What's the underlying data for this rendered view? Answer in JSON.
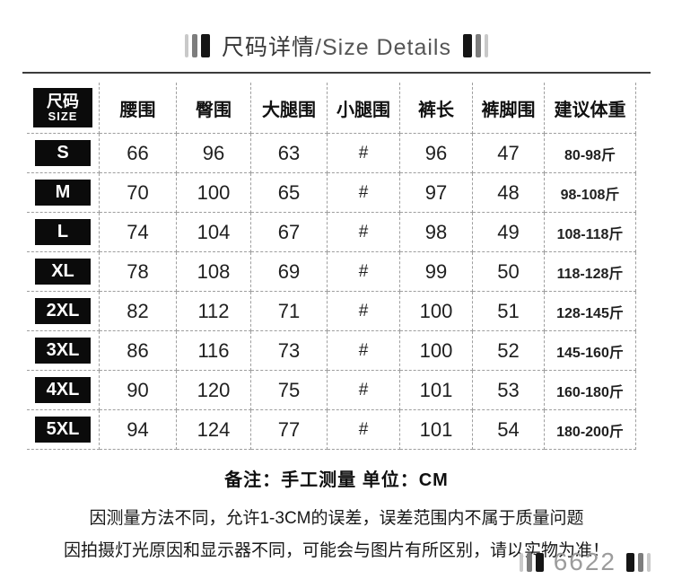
{
  "title": {
    "zh": "尺码详情",
    "en": "/Size Details"
  },
  "table": {
    "header": {
      "size_zh": "尺码",
      "size_en": "SIZE",
      "columns": [
        "腰围",
        "臀围",
        "大腿围",
        "小腿围",
        "裤长",
        "裤脚围",
        "建议体重"
      ]
    },
    "rows": [
      {
        "size": "S",
        "values": [
          "66",
          "96",
          "63",
          "#",
          "96",
          "47",
          "80-98斤"
        ]
      },
      {
        "size": "M",
        "values": [
          "70",
          "100",
          "65",
          "#",
          "97",
          "48",
          "98-108斤"
        ]
      },
      {
        "size": "L",
        "values": [
          "74",
          "104",
          "67",
          "#",
          "98",
          "49",
          "108-118斤"
        ]
      },
      {
        "size": "XL",
        "values": [
          "78",
          "108",
          "69",
          "#",
          "99",
          "50",
          "118-128斤"
        ]
      },
      {
        "size": "2XL",
        "values": [
          "82",
          "112",
          "71",
          "#",
          "100",
          "51",
          "128-145斤"
        ]
      },
      {
        "size": "3XL",
        "values": [
          "86",
          "116",
          "73",
          "#",
          "100",
          "52",
          "145-160斤"
        ]
      },
      {
        "size": "4XL",
        "values": [
          "90",
          "120",
          "75",
          "#",
          "101",
          "53",
          "160-180斤"
        ]
      },
      {
        "size": "5XL",
        "values": [
          "94",
          "124",
          "77",
          "#",
          "101",
          "54",
          "180-200斤"
        ]
      }
    ]
  },
  "notes": {
    "line1": "备注：手工测量  单位：CM",
    "line2": "因测量方法不同，允许1-3CM的误差，误差范围内不属于质量问题",
    "line3": "因拍摄灯光原因和显示器不同，可能会与图片有所区别，请以实物为准！"
  },
  "footer": {
    "code": "6622"
  },
  "colors": {
    "bar_black": "#151515",
    "bar_gray": "#7d7d7d",
    "bar_light": "#c9c9c9",
    "text_dark": "#1a1a1a",
    "code_gray": "#9c9c9c",
    "dash_gray": "#9e9e9e",
    "size_box_bg": "#0b0b0b"
  }
}
